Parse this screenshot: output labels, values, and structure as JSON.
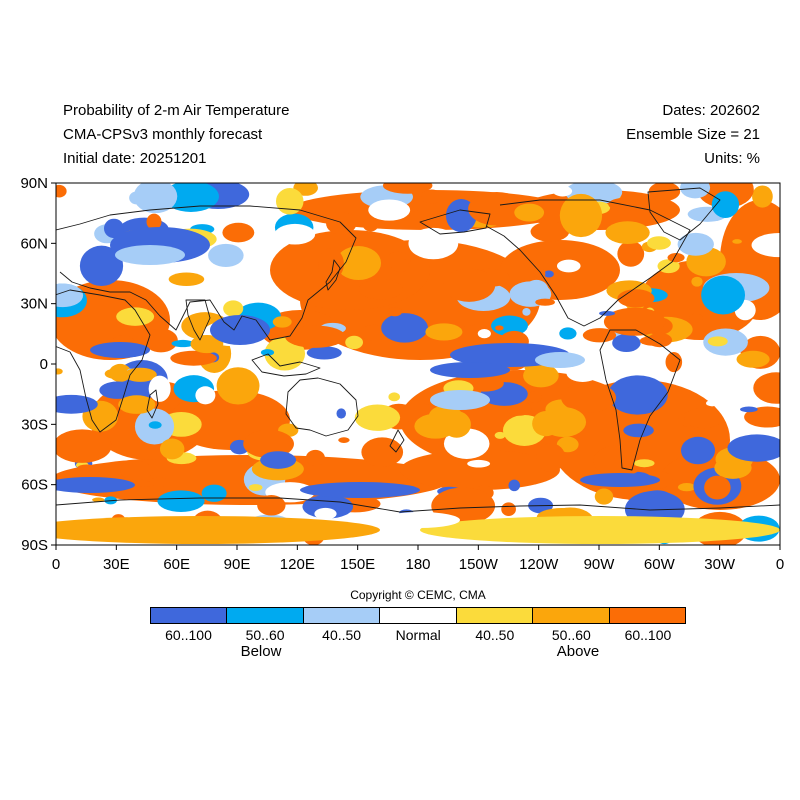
{
  "header": {
    "title": "Probability of 2-m Air Temperature",
    "subtitle": "CMA-CPSv3 monthly forecast",
    "initial_date": "Initial date: 20251201",
    "dates": "Dates: 202602",
    "ensemble": "Ensemble Size = 21",
    "units": "Units: %"
  },
  "axes": {
    "lat_ticks": [
      "90N",
      "60N",
      "30N",
      "0",
      "30S",
      "60S",
      "90S"
    ],
    "lon_ticks": [
      "0",
      "30E",
      "60E",
      "90E",
      "120E",
      "150E",
      "180",
      "150W",
      "120W",
      "90W",
      "60W",
      "30W",
      "0"
    ]
  },
  "copyright": "Copyright © CEMC, CMA",
  "legend": {
    "categories": [
      {
        "label": "60..100",
        "color": "#3f68dc"
      },
      {
        "label": "50..60",
        "color": "#00aaf0"
      },
      {
        "label": "40..50",
        "color": "#a6cdf7"
      },
      {
        "label": "Normal",
        "color": "#ffffff"
      },
      {
        "label": "40..50",
        "color": "#fbdb3b"
      },
      {
        "label": "50..60",
        "color": "#fba60c"
      },
      {
        "label": "60..100",
        "color": "#fb6d06"
      }
    ],
    "below_label": "Below",
    "above_label": "Above"
  }
}
